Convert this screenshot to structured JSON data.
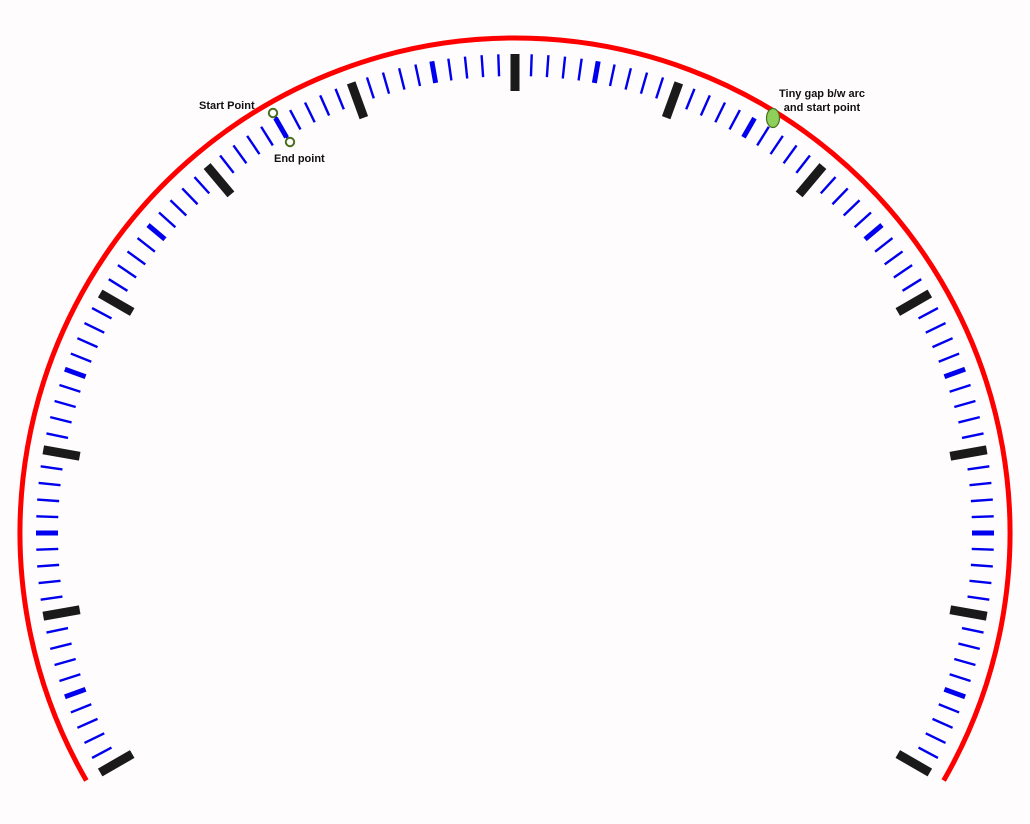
{
  "gauge": {
    "sweep_degrees": 240,
    "total_ticks": 120,
    "major_every": 10,
    "medium_every": 5,
    "colors": {
      "arc": "#ff0000",
      "minor_tick": "#0000ee",
      "medium_tick": "#0000ee",
      "major_tick": "#1a1a1a",
      "marker_fill": "#ffffff",
      "marker_stroke": "#4a6d1e",
      "gap_marker_fill": "#8ed05a",
      "gap_marker_stroke": "#4a6d1e",
      "background": "#fefcfd"
    }
  },
  "annotations": {
    "start_point_label": "Start Point",
    "end_point_label": "End point",
    "gap_note_line1": "Tiny gap b/w arc",
    "gap_note_line2": "and start point"
  }
}
